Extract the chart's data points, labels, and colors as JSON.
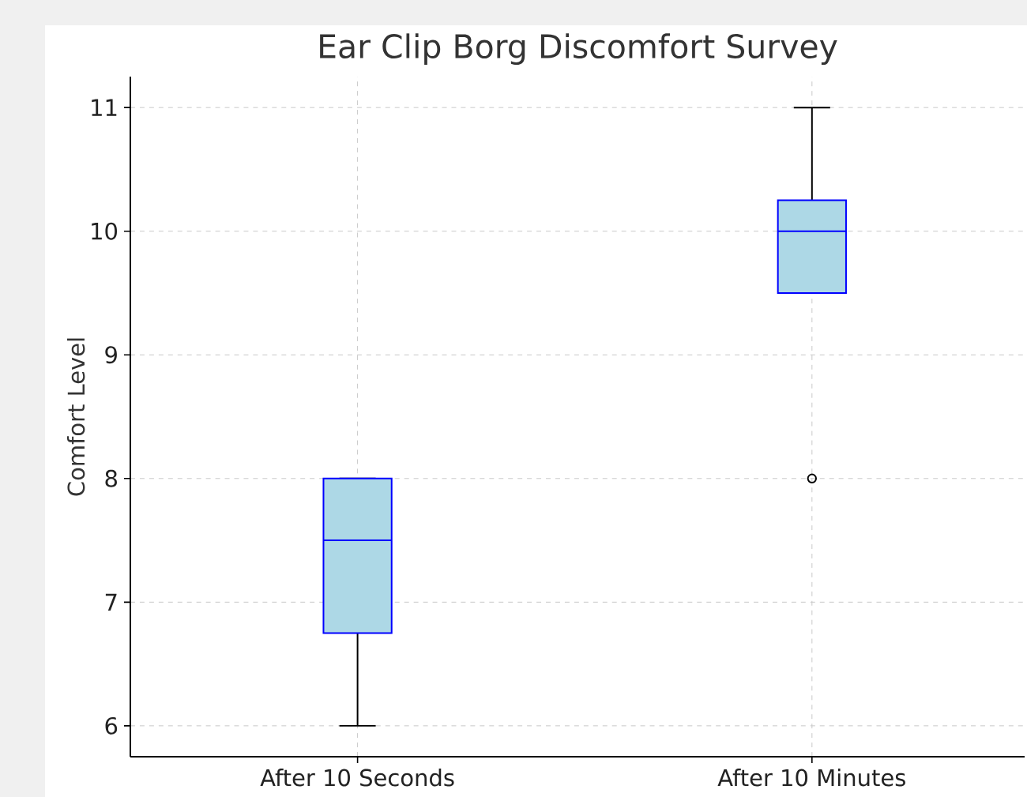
{
  "chart_data": {
    "type": "box",
    "title": "Ear Clip Borg Discomfort Survey",
    "ylabel": "Comfort Level",
    "categories": [
      "After 10 Seconds",
      "After 10 Minutes"
    ],
    "series": [
      {
        "color": "#add8e6",
        "boxes": [
          {
            "low": 6,
            "q1": 6.75,
            "median": 7.5,
            "q3": 8,
            "high": 8
          },
          {
            "low": 9.5,
            "q1": 9.5,
            "median": 10,
            "q3": 10.25,
            "high": 11,
            "outliers": [
              8
            ]
          }
        ]
      }
    ],
    "ylim": [
      5.75,
      11.25
    ],
    "yticks": [
      6,
      7,
      8,
      9,
      10,
      11
    ],
    "grid": true
  }
}
